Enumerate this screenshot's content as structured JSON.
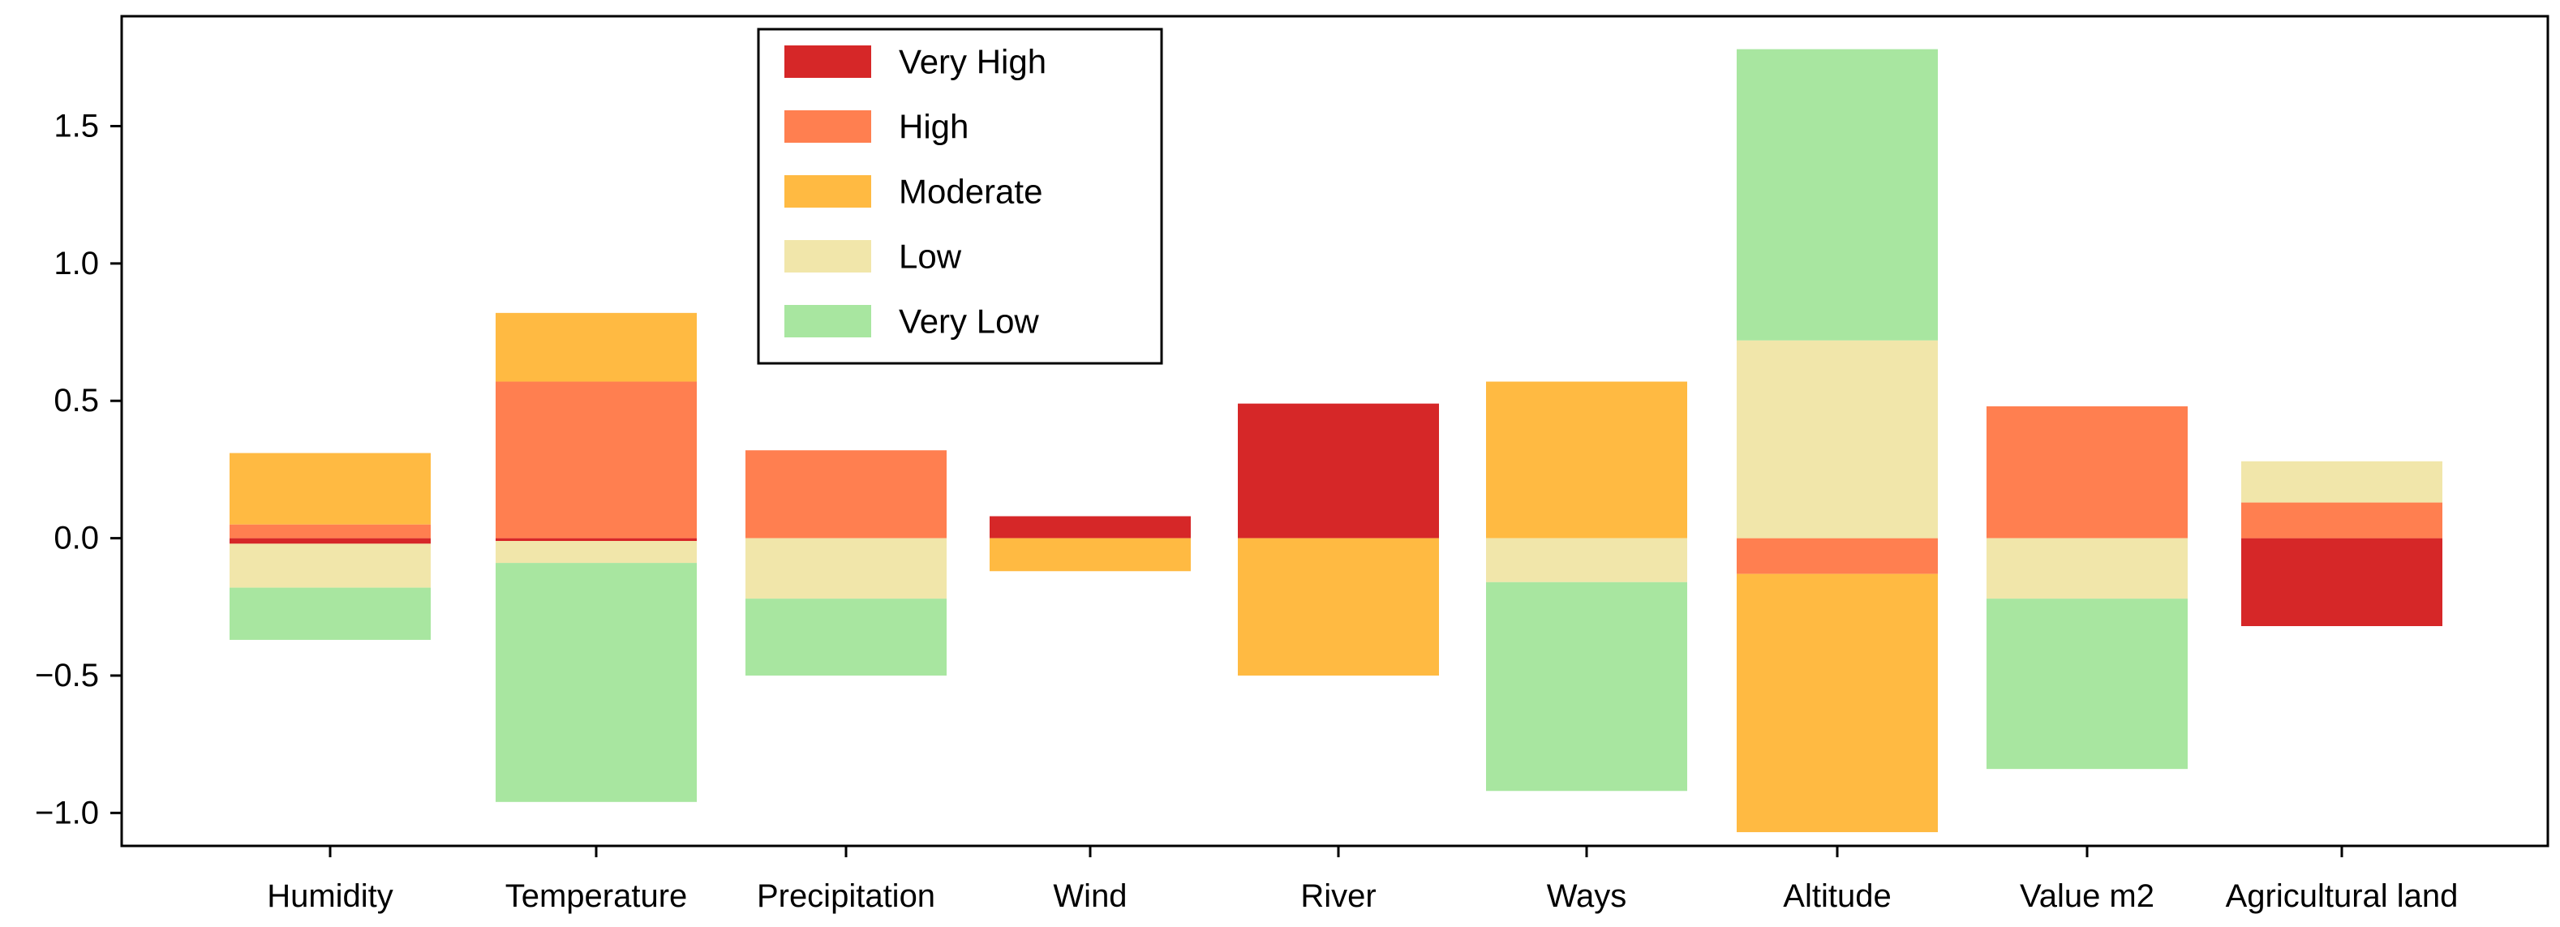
{
  "chart_data": {
    "type": "bar",
    "stacked": "diverging",
    "categories": [
      "Humidity",
      "Temperature",
      "Precipitation",
      "Wind",
      "River",
      "Ways",
      "Altitude",
      "Value m2",
      "Agricultural land"
    ],
    "ylim": [
      -1.12,
      1.9
    ],
    "yticks": [
      -1.0,
      -0.5,
      0.0,
      0.5,
      1.0,
      1.5
    ],
    "ytick_labels": [
      "−1.0",
      "−0.5",
      "0.0",
      "0.5",
      "1.0",
      "1.5"
    ],
    "grid": false,
    "legend_position": "upper-center",
    "series": [
      {
        "name": "Very High",
        "color": "#d62728",
        "values": [
          -0.02,
          -0.01,
          0.0,
          0.08,
          0.49,
          0.0,
          0.0,
          0.0,
          -0.32
        ]
      },
      {
        "name": "High",
        "color": "#ff7f50",
        "values": [
          0.05,
          0.57,
          0.32,
          0.0,
          0.0,
          0.0,
          -0.13,
          0.48,
          0.13
        ]
      },
      {
        "name": "Moderate",
        "color": "#ffba42",
        "values": [
          0.26,
          0.25,
          0.0,
          -0.12,
          -0.5,
          0.57,
          -0.94,
          0.0,
          0.0
        ]
      },
      {
        "name": "Low",
        "color": "#f1e6aa",
        "values": [
          -0.16,
          -0.08,
          -0.22,
          0.0,
          0.0,
          -0.16,
          0.72,
          -0.22,
          0.15
        ]
      },
      {
        "name": "Very Low",
        "color": "#a8e6a0",
        "values": [
          -0.19,
          -0.87,
          -0.28,
          0.0,
          0.0,
          -0.76,
          1.06,
          -0.62,
          0.0
        ]
      }
    ]
  }
}
